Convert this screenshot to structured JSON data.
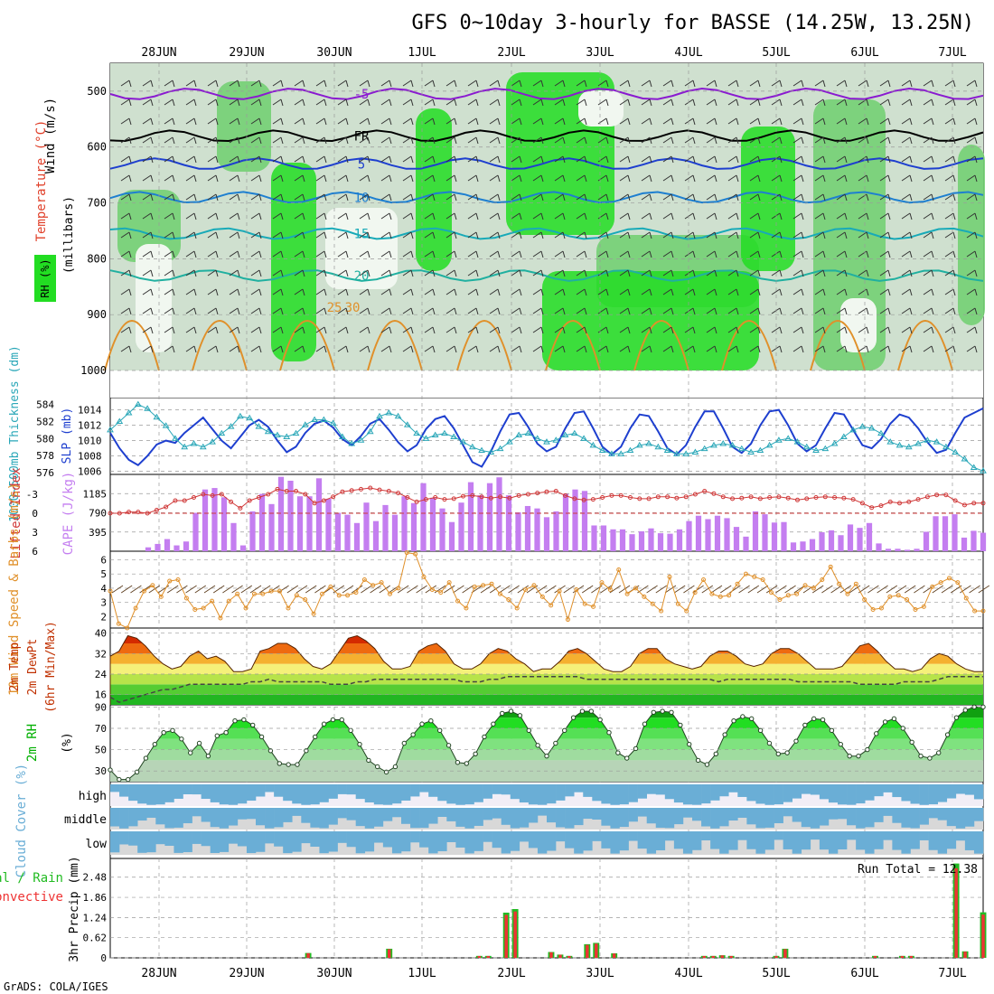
{
  "title": "GFS 0~10day 3-hourly for BASSE (14.25W, 13.25N)",
  "footer": "GrADS: COLA/IGES",
  "date_labels": [
    "28JUN",
    "29JUN",
    "30JUN",
    "1JUL",
    "2JUL",
    "3JUL",
    "4JUL",
    "5JUL",
    "6JUL",
    "7JUL"
  ],
  "colors": {
    "grid": "#9a9a9a",
    "rh_light": "#cfe0cf",
    "rh_mid": "#6fcf6f",
    "rh_bright": "#22dd22",
    "slp": "#1e3fcf",
    "thickness": "#2aa7b8",
    "lifted": "#d03a3a",
    "cape": "#c47ef0",
    "wind": "#e0902a",
    "barb": "#5a3a1a",
    "temp_top": "#cc0000",
    "dew": "#444444",
    "rh2m": "#00b000",
    "cloud": "#6aaed6",
    "cloud_bg": "#d8d8d8",
    "precip_total": "#22bb22",
    "precip_conv": "#ee3333"
  },
  "chart_data": [
    {
      "type": "heatmap",
      "panel": "upper-air",
      "ylabels": [
        "Wind (m/s)",
        "Temperature (°C)",
        "RH (%)",
        "(millibars)"
      ],
      "y_ticks": [
        500,
        600,
        700,
        800,
        900,
        1000
      ],
      "ylim": [
        450,
        1000
      ],
      "isotherm_labels": [
        "-5",
        "FR",
        "5",
        "10",
        "15",
        "20",
        "25",
        "30"
      ],
      "isotherms": [
        {
          "label": "-5",
          "level": 505,
          "color": "#8a1ad0"
        },
        {
          "label": "FR",
          "level": 580,
          "color": "#000000"
        },
        {
          "label": "5",
          "level": 630,
          "color": "#1e3fcf"
        },
        {
          "label": "10",
          "level": 690,
          "color": "#1e7fd0"
        },
        {
          "label": "15",
          "level": 755,
          "color": "#18aab8"
        },
        {
          "label": "20",
          "level": 830,
          "color": "#20b0a0"
        }
      ]
    },
    {
      "type": "line",
      "panel": "slp-thickness",
      "ylabels": [
        "1000~500mb Thickness (dm)",
        "SLP (mb)"
      ],
      "left_ticks": [
        576,
        578,
        580,
        582,
        584
      ],
      "right_ticks": [
        1006,
        1008,
        1010,
        1012,
        1014
      ],
      "ylim_left": [
        575.8,
        584.8
      ],
      "ylim_right": [
        1005.6,
        1015.6
      ],
      "series": [
        {
          "name": "SLP",
          "axis": "right",
          "values": [
            1011,
            1009,
            1007.5,
            1006.8,
            1008,
            1009.5,
            1010,
            1009.7,
            1011,
            1012,
            1013,
            1011.5,
            1010,
            1009,
            1010.5,
            1012,
            1012.7,
            1011.8,
            1010,
            1008.5,
            1009.2,
            1011,
            1012.2,
            1012.6,
            1011.7,
            1010.2,
            1009.4,
            1010.6,
            1012.2,
            1012.8,
            1011.4,
            1009.8,
            1008.6,
            1009.4,
            1011.5,
            1012.8,
            1013.2,
            1011.6,
            1009.4,
            1007.2,
            1006.6,
            1008.6,
            1011.2,
            1013.4,
            1013.6,
            1011.8,
            1009.6,
            1008.6,
            1009.2,
            1011.6,
            1013.6,
            1013.8,
            1011.6,
            1009.2,
            1008.2,
            1009.2,
            1011.6,
            1013.4,
            1013.2,
            1011.2,
            1009.0,
            1008.2,
            1009.4,
            1011.8,
            1013.8,
            1013.8,
            1011.6,
            1009.2,
            1008.4,
            1009.6,
            1012.0,
            1013.8,
            1014.0,
            1012.0,
            1009.6,
            1008.6,
            1009.4,
            1011.6,
            1013.6,
            1013.4,
            1011.4,
            1009.4,
            1009.0,
            1010.2,
            1012.2,
            1013.4,
            1013.0,
            1011.6,
            1009.8,
            1008.4,
            1008.8,
            1011.0,
            1013.0,
            1013.6,
            1014.2
          ]
        },
        {
          "name": "Thickness",
          "axis": "left",
          "values": [
            581,
            582,
            583,
            584,
            583.5,
            582.5,
            581.5,
            580,
            579,
            579.4,
            579,
            579.6,
            580.6,
            581.4,
            582.6,
            582.4,
            581.4,
            580.8,
            580.4,
            580.2,
            580.6,
            581.6,
            582.2,
            582.2,
            581.8,
            580.2,
            579.4,
            579.8,
            580.8,
            582.6,
            583.0,
            582.6,
            581.6,
            580.6,
            580.0,
            580.4,
            580.6,
            580.2,
            579.6,
            579.0,
            578.6,
            578.4,
            578.8,
            579.6,
            580.4,
            580.6,
            580.0,
            579.6,
            579.8,
            580.4,
            580.6,
            580.0,
            579.2,
            578.6,
            578.2,
            578.2,
            578.6,
            579.2,
            579.4,
            579.0,
            578.6,
            578.2,
            578.2,
            578.4,
            578.8,
            579.2,
            579.4,
            579.2,
            578.8,
            578.4,
            578.6,
            579.2,
            579.8,
            580.0,
            579.6,
            579.0,
            578.6,
            578.8,
            579.4,
            580.2,
            581.0,
            581.4,
            581.2,
            580.6,
            579.6,
            579.2,
            579.0,
            579.4,
            579.8,
            579.6,
            579.0,
            578.4,
            577.6,
            576.6,
            576.2
          ]
        }
      ]
    },
    {
      "type": "bar",
      "panel": "cape-li",
      "ylabels": [
        "Lifted Index",
        "CAPE (J/kg)"
      ],
      "left_ticks": [
        "-3",
        "0",
        "3",
        "6"
      ],
      "right_ticks": [
        395,
        790,
        1185
      ],
      "ylim_cape": [
        0,
        1580
      ],
      "ylim_li": [
        6,
        -6
      ],
      "cape_values": [
        0,
        0,
        0,
        0,
        80,
        150,
        250,
        120,
        200,
        790,
        1270,
        1300,
        1110,
        580,
        120,
        820,
        1180,
        970,
        1530,
        1450,
        1130,
        1130,
        1500,
        1080,
        790,
        750,
        580,
        1000,
        620,
        950,
        750,
        1130,
        990,
        1400,
        1100,
        880,
        600,
        1000,
        1420,
        1150,
        1400,
        1520,
        1150,
        800,
        930,
        880,
        700,
        820,
        1180,
        1270,
        1240,
        530,
        530,
        450,
        450,
        350,
        410,
        470,
        370,
        360,
        450,
        620,
        730,
        660,
        730,
        680,
        500,
        300,
        820,
        760,
        590,
        600,
        180,
        200,
        250,
        390,
        430,
        330,
        550,
        480,
        580,
        160,
        50,
        50,
        30,
        50,
        400,
        720,
        720,
        760,
        280,
        420,
        380
      ],
      "li_values": [
        0,
        0,
        -0.2,
        -0.2,
        0,
        -0.5,
        -1,
        -2,
        -2,
        -2.5,
        -3,
        -2.8,
        -3,
        -1.8,
        -0.8,
        -2,
        -2.5,
        -3,
        -3.8,
        -3.5,
        -3.5,
        -3,
        -1.6,
        -2,
        -2.6,
        -3.4,
        -3.6,
        -3.8,
        -4,
        -3.7,
        -3.5,
        -3.2,
        -2.5,
        -1.8,
        -2.2,
        -2.5,
        -2.2,
        -2.3,
        -2.7,
        -2.8,
        -2.6,
        -2.4,
        -2.6,
        -2.4,
        -2.8,
        -3,
        -3.2,
        -3.4,
        -3.5,
        -2.8,
        -2.3,
        -2.1,
        -2.2,
        -2.5,
        -2.8,
        -2.8,
        -2.5,
        -2.3,
        -2.3,
        -2.6,
        -2.6,
        -2.4,
        -2.6,
        -3,
        -3.5,
        -3.1,
        -2.6,
        -2.3,
        -2.4,
        -2.6,
        -2.3,
        -2.5,
        -2.6,
        -2.4,
        -2.1,
        -2.3,
        -2.5,
        -2.6,
        -2.5,
        -2.4,
        -2.2,
        -1.6,
        -0.9,
        -1.2,
        -1.8,
        -1.6,
        -1.8,
        -2.2,
        -2.6,
        -2.9,
        -2.9,
        -2.0,
        -1.3,
        -1.6,
        -1.6
      ]
    },
    {
      "type": "line",
      "panel": "wind10m",
      "ylabels": [
        "10m Wind Speed & Barbs (m/s)"
      ],
      "y_ticks": [
        2,
        3,
        4,
        5,
        6
      ],
      "ylim": [
        1.2,
        6.6
      ],
      "values": [
        3.8,
        1.5,
        1.2,
        2.6,
        3.8,
        4.2,
        3.4,
        4.5,
        4.6,
        3.3,
        2.5,
        2.6,
        3.1,
        1.9,
        3.1,
        3.6,
        2.6,
        3.6,
        3.6,
        3.8,
        3.8,
        2.6,
        3.5,
        3.2,
        2.2,
        3.6,
        4.1,
        3.5,
        3.5,
        3.7,
        4.6,
        4.2,
        4.4,
        3.6,
        4.0,
        6.5,
        6.4,
        4.8,
        3.9,
        3.7,
        4.4,
        3.1,
        2.6,
        4.1,
        4.2,
        4.3,
        3.6,
        3.2,
        2.6,
        3.9,
        4.2,
        3.4,
        2.8,
        3.8,
        1.8,
        3.9,
        2.9,
        2.7,
        4.4,
        3.9,
        5.3,
        3.6,
        4.0,
        3.4,
        2.9,
        2.4,
        4.8,
        2.9,
        2.4,
        3.7,
        4.6,
        3.6,
        3.4,
        3.5,
        4.3,
        5.0,
        4.8,
        4.6,
        3.7,
        3.2,
        3.5,
        3.6,
        4.2,
        4.0,
        4.6,
        5.5,
        4.3,
        3.6,
        4.3,
        3.2,
        2.5,
        2.6,
        3.4,
        3.5,
        3.2,
        2.5,
        2.7,
        4.1,
        4.4,
        4.7,
        4.4,
        3.3,
        2.4,
        2.4
      ]
    },
    {
      "type": "area",
      "panel": "temp2m",
      "ylabels": [
        "2m Temp",
        "2m DewPt",
        "(6hr Min/Max)"
      ],
      "y_ticks": [
        16,
        24,
        32,
        40
      ],
      "ylim": [
        12,
        42
      ],
      "temp": [
        31,
        33,
        39,
        38,
        35,
        31,
        28,
        26,
        27,
        31,
        33,
        30,
        31,
        29,
        25,
        25,
        26,
        33,
        34,
        36,
        36,
        34,
        30,
        27,
        26,
        28,
        33,
        38,
        39,
        37,
        34,
        29,
        26,
        26,
        27,
        33,
        35,
        36,
        33,
        28,
        26,
        26,
        28,
        32,
        34,
        33,
        30,
        28,
        25,
        26,
        26,
        29,
        33,
        34,
        32,
        29,
        26,
        25,
        25,
        27,
        32,
        34,
        34,
        30,
        28,
        27,
        26,
        27,
        31,
        33,
        33,
        31,
        28,
        27,
        28,
        32,
        34,
        34,
        32,
        29,
        26,
        26,
        26,
        27,
        31,
        35,
        36,
        33,
        29,
        26,
        26,
        25,
        26,
        30,
        32,
        31,
        28,
        26,
        25,
        25
      ],
      "dew": [
        15,
        13,
        14,
        15,
        16,
        17,
        18,
        18,
        19,
        20,
        20,
        20,
        20,
        20,
        20,
        20,
        21,
        21,
        22,
        21,
        21,
        21,
        21,
        21,
        21,
        20,
        20,
        20,
        21,
        21,
        22,
        22,
        22,
        22,
        22,
        22,
        22,
        22,
        22,
        22,
        21,
        21,
        21,
        22,
        22,
        23,
        23,
        23,
        23,
        23,
        23,
        23,
        23,
        23,
        22,
        22,
        22,
        22,
        22,
        22,
        22,
        22,
        22,
        22,
        22,
        22,
        22,
        22,
        22,
        21,
        22,
        22,
        22,
        22,
        22,
        22,
        22,
        22,
        21,
        21,
        21,
        21,
        21,
        21,
        21,
        20,
        20,
        20,
        20,
        20,
        21,
        21,
        21,
        21,
        22,
        23,
        23,
        23,
        23,
        23
      ]
    },
    {
      "type": "area",
      "panel": "rh2m",
      "ylabels": [
        "2m RH",
        "(%)"
      ],
      "y_ticks": [
        30,
        50,
        70,
        90
      ],
      "ylim": [
        20,
        92
      ],
      "values": [
        31,
        22,
        22,
        29,
        42,
        55,
        66,
        68,
        60,
        47,
        56,
        44,
        63,
        66,
        77,
        78,
        73,
        62,
        49,
        37,
        36,
        36,
        49,
        62,
        74,
        78,
        78,
        68,
        55,
        40,
        34,
        29,
        34,
        56,
        64,
        74,
        77,
        68,
        54,
        38,
        37,
        46,
        62,
        74,
        84,
        86,
        82,
        68,
        54,
        44,
        56,
        68,
        80,
        86,
        86,
        78,
        66,
        47,
        42,
        51,
        74,
        85,
        86,
        85,
        73,
        55,
        40,
        36,
        46,
        64,
        77,
        81,
        79,
        68,
        56,
        46,
        47,
        58,
        73,
        79,
        78,
        68,
        55,
        44,
        44,
        50,
        65,
        76,
        79,
        70,
        57,
        44,
        42,
        47,
        64,
        80,
        87,
        90,
        90
      ]
    },
    {
      "type": "heatmap",
      "panel": "cloud",
      "ylabels": [
        "Cloud Cover (%)"
      ],
      "rows": [
        "high",
        "middle",
        "low"
      ]
    },
    {
      "type": "bar",
      "panel": "precip",
      "ylabels": [
        "Total / Rain",
        "Convective",
        "3hr Precip (mm)"
      ],
      "y_ticks": [
        0,
        0.62,
        1.24,
        1.86,
        2.48
      ],
      "ylim": [
        0,
        3.0
      ],
      "run_total_label": "Run Total = 12.38",
      "total": [
        0,
        0,
        0,
        0,
        0,
        0,
        0,
        0,
        0,
        0,
        0,
        0,
        0,
        0,
        0,
        0,
        0,
        0,
        0,
        0,
        0,
        0,
        0.15,
        0,
        0,
        0,
        0,
        0,
        0,
        0,
        0,
        0.28,
        0,
        0,
        0,
        0,
        0,
        0,
        0,
        0,
        0,
        0.06,
        0.06,
        0,
        1.39,
        1.5,
        0,
        0,
        0,
        0.18,
        0.1,
        0.06,
        0,
        0.42,
        0.46,
        0,
        0.14,
        0,
        0,
        0,
        0,
        0,
        0,
        0,
        0,
        0,
        0.06,
        0.06,
        0.08,
        0.06,
        0,
        0,
        0,
        0,
        0.06,
        0.28,
        0,
        0,
        0,
        0,
        0,
        0,
        0,
        0,
        0,
        0.06,
        0,
        0,
        0.06,
        0.06,
        0,
        0,
        0,
        0,
        2.9,
        0.2,
        0,
        1.4
      ]
    }
  ]
}
